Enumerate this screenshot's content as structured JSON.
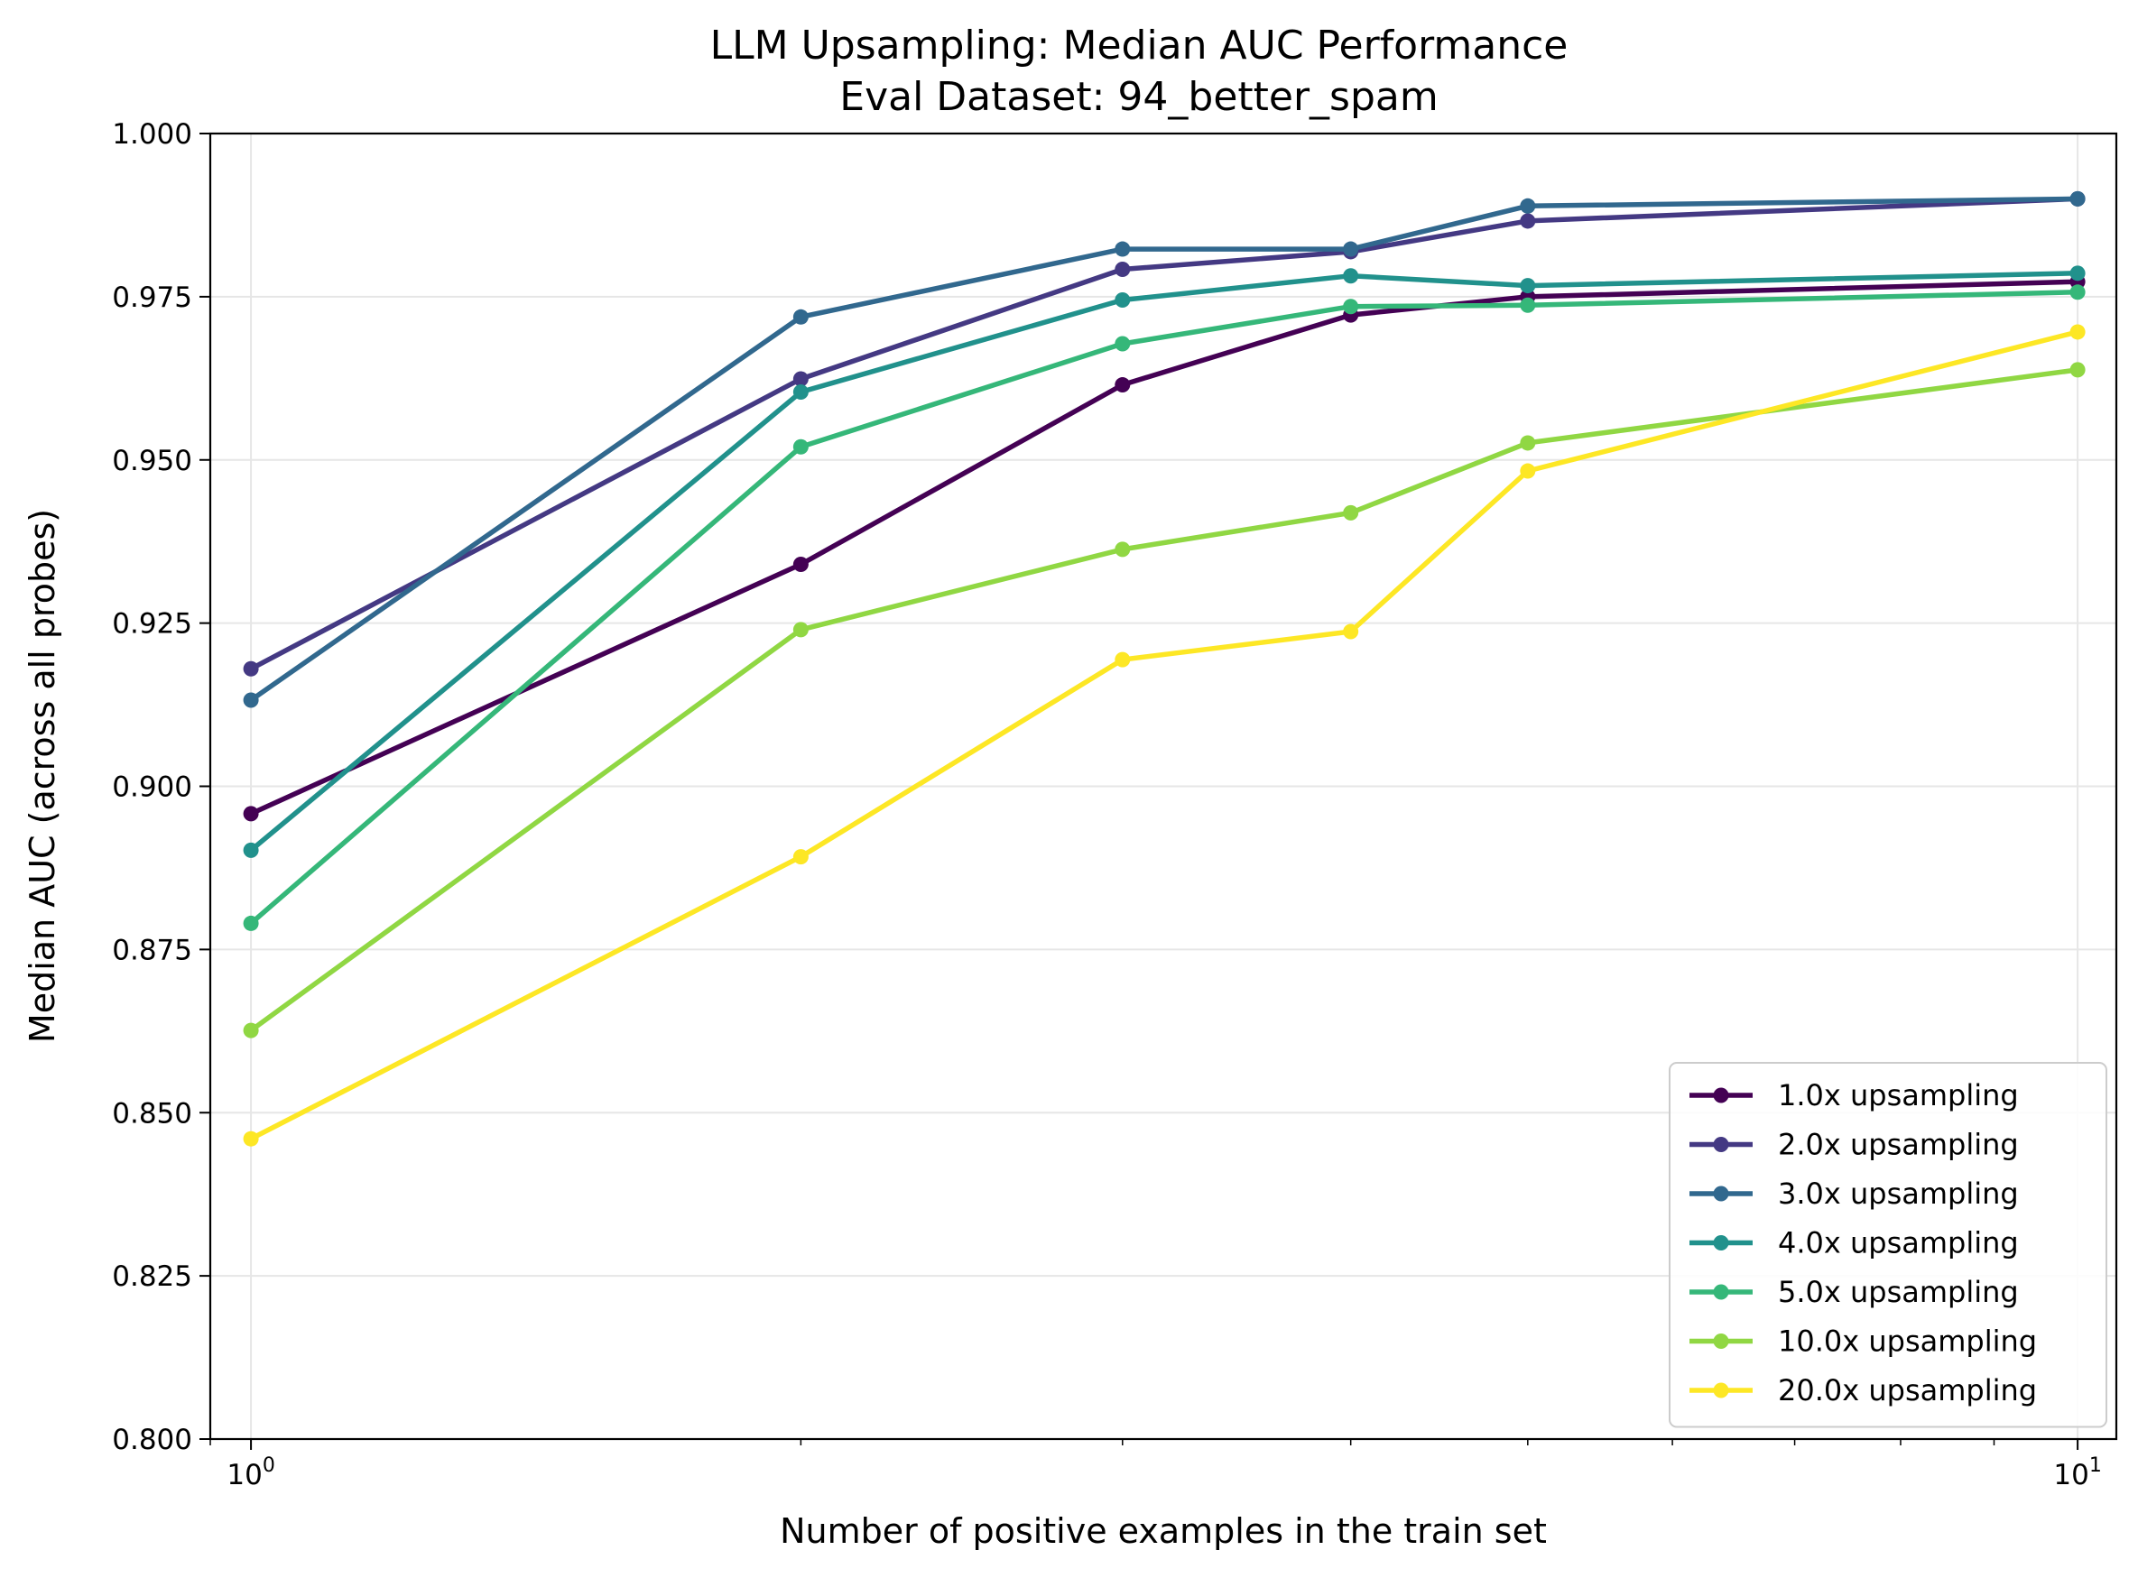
{
  "chart_data": {
    "type": "line",
    "title": "LLM Upsampling: Median AUC Performance",
    "subtitle": "Eval Dataset: 94_better_spam",
    "xlabel": "Number of positive examples in the train set",
    "ylabel": "Median AUC (across all probes)",
    "x_scale": "log",
    "xlim": [
      0.95,
      10.5
    ],
    "ylim": [
      0.8,
      1.0
    ],
    "x_ticks": [
      {
        "value": 1,
        "base": "10",
        "exp": "0"
      },
      {
        "value": 10,
        "base": "10",
        "exp": "1"
      }
    ],
    "y_ticks": [
      "0.800",
      "0.825",
      "0.850",
      "0.875",
      "0.900",
      "0.925",
      "0.950",
      "0.975",
      "1.000"
    ],
    "grid": true,
    "legend_position": "lower-right",
    "x": [
      1,
      2,
      3,
      4,
      5,
      10
    ],
    "series": [
      {
        "name": "1.0x upsampling",
        "color": "#440154",
        "values": [
          0.8958,
          0.934,
          0.9615,
          0.9722,
          0.975,
          0.9773
        ]
      },
      {
        "name": "2.0x upsampling",
        "color": "#443983",
        "values": [
          0.918,
          0.9624,
          0.9792,
          0.9819,
          0.9866,
          0.99
        ]
      },
      {
        "name": "3.0x upsampling",
        "color": "#31688e",
        "values": [
          0.9132,
          0.9719,
          0.9823,
          0.9823,
          0.9889,
          0.99
        ]
      },
      {
        "name": "4.0x upsampling",
        "color": "#21918c",
        "values": [
          0.8902,
          0.9604,
          0.9745,
          0.9782,
          0.9767,
          0.9786
        ]
      },
      {
        "name": "5.0x upsampling",
        "color": "#35b779",
        "values": [
          0.879,
          0.952,
          0.9678,
          0.9735,
          0.9737,
          0.9757
        ]
      },
      {
        "name": "10.0x upsampling",
        "color": "#90d743",
        "values": [
          0.8626,
          0.924,
          0.9363,
          0.9419,
          0.9526,
          0.9638
        ]
      },
      {
        "name": "20.0x upsampling",
        "color": "#fde725",
        "values": [
          0.846,
          0.8892,
          0.9194,
          0.9237,
          0.9483,
          0.9696
        ]
      }
    ]
  }
}
